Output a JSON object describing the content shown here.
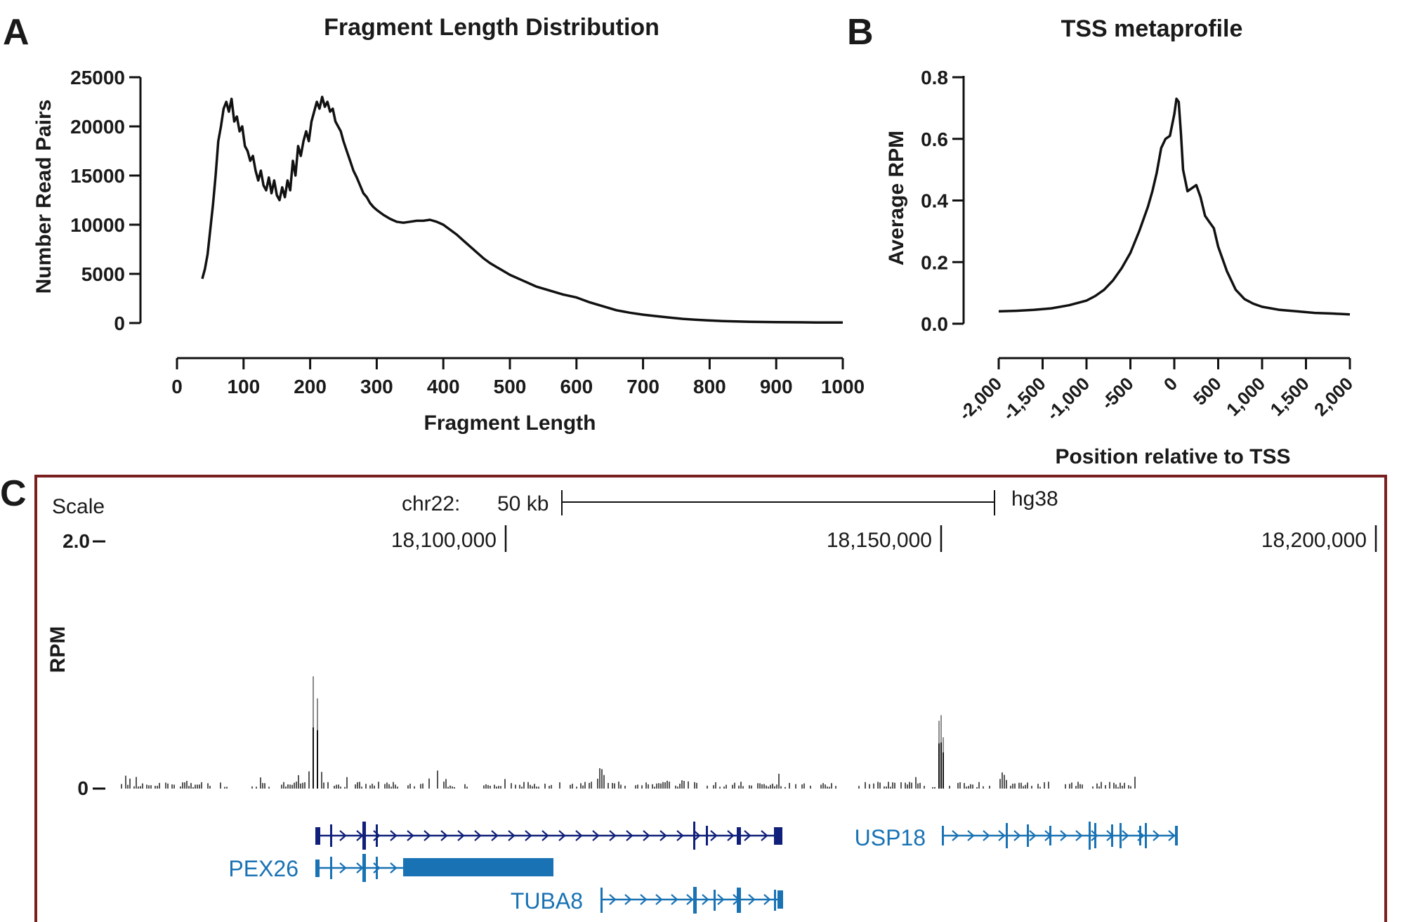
{
  "panel_labels": {
    "a": "A",
    "b": "B",
    "c": "C"
  },
  "colors": {
    "ink": "#111111",
    "frame": "#7a1f1f",
    "gene_dark": "#0f1f7a",
    "gene_blue": "#1872b4",
    "signal_gray": "#8a8a8a"
  },
  "chart_data": [
    {
      "type": "line",
      "title": "Fragment Length Distribution",
      "xlabel": "Fragment Length",
      "ylabel": "Number Read Pairs",
      "xlim": [
        0,
        1000
      ],
      "ylim": [
        0,
        25000
      ],
      "xticks": [
        0,
        100,
        200,
        300,
        400,
        500,
        600,
        700,
        800,
        900,
        1000
      ],
      "yticks": [
        0,
        5000,
        10000,
        15000,
        20000,
        25000
      ],
      "x": [
        38,
        42,
        46,
        50,
        54,
        58,
        62,
        66,
        70,
        74,
        78,
        82,
        86,
        90,
        94,
        98,
        102,
        106,
        110,
        114,
        118,
        122,
        126,
        130,
        134,
        138,
        142,
        146,
        150,
        154,
        158,
        162,
        166,
        170,
        174,
        178,
        182,
        186,
        190,
        194,
        198,
        202,
        206,
        210,
        214,
        218,
        222,
        226,
        230,
        234,
        238,
        242,
        246,
        250,
        255,
        260,
        265,
        270,
        275,
        280,
        285,
        290,
        295,
        300,
        310,
        320,
        330,
        340,
        350,
        360,
        370,
        380,
        390,
        400,
        410,
        420,
        430,
        440,
        450,
        460,
        470,
        480,
        490,
        500,
        520,
        540,
        560,
        580,
        600,
        620,
        640,
        660,
        680,
        700,
        720,
        740,
        760,
        780,
        800,
        820,
        840,
        860,
        880,
        900,
        920,
        940,
        960,
        980,
        1000
      ],
      "series": [
        {
          "values": [
            4500,
            5500,
            7000,
            9500,
            12000,
            15000,
            18500,
            20000,
            21800,
            22500,
            21500,
            22800,
            20500,
            21000,
            19500,
            20000,
            18000,
            17500,
            16500,
            17000,
            15500,
            14500,
            15500,
            14000,
            13500,
            14800,
            13200,
            14500,
            13000,
            12500,
            13800,
            12800,
            14500,
            13500,
            16500,
            15000,
            18000,
            17000,
            18500,
            19500,
            18500,
            20500,
            21500,
            22500,
            21800,
            23000,
            22000,
            22500,
            21500,
            21800,
            20500,
            20000,
            19500,
            18500,
            17500,
            16500,
            15500,
            14800,
            14000,
            13200,
            12800,
            12200,
            11800,
            11500,
            11000,
            10600,
            10300,
            10200,
            10300,
            10400,
            10400,
            10500,
            10300,
            10000,
            9500,
            9000,
            8400,
            7800,
            7200,
            6600,
            6100,
            5700,
            5300,
            4900,
            4300,
            3700,
            3300,
            2900,
            2600,
            2100,
            1700,
            1300,
            1050,
            850,
            700,
            550,
            420,
            330,
            260,
            200,
            160,
            130,
            110,
            95,
            80,
            70,
            60,
            55,
            50
          ]
        }
      ]
    },
    {
      "type": "line",
      "title": "TSS metaprofile",
      "xlabel": "Position relative to TSS",
      "ylabel": "Average RPM",
      "xlim": [
        -2000,
        2000
      ],
      "ylim": [
        0,
        0.8
      ],
      "xticks": [
        "-2,000",
        "-1,500",
        "-1,000",
        "-500",
        "0",
        "500",
        "1,000",
        "1,500",
        "2,000"
      ],
      "yticks": [
        "0.0",
        "0.2",
        "0.4",
        "0.6",
        "0.8"
      ],
      "x": [
        -2000,
        -1800,
        -1600,
        -1400,
        -1200,
        -1000,
        -900,
        -800,
        -700,
        -600,
        -500,
        -400,
        -300,
        -250,
        -200,
        -150,
        -100,
        -50,
        0,
        25,
        50,
        75,
        100,
        150,
        200,
        250,
        300,
        350,
        400,
        450,
        500,
        600,
        700,
        800,
        900,
        1000,
        1200,
        1400,
        1600,
        1800,
        2000
      ],
      "series": [
        {
          "values": [
            0.04,
            0.042,
            0.045,
            0.05,
            0.06,
            0.075,
            0.09,
            0.11,
            0.14,
            0.18,
            0.23,
            0.3,
            0.38,
            0.43,
            0.49,
            0.57,
            0.6,
            0.61,
            0.68,
            0.73,
            0.72,
            0.62,
            0.5,
            0.43,
            0.44,
            0.45,
            0.41,
            0.35,
            0.33,
            0.31,
            0.25,
            0.17,
            0.11,
            0.08,
            0.065,
            0.055,
            0.045,
            0.04,
            0.035,
            0.033,
            0.03
          ]
        }
      ]
    }
  ],
  "browser": {
    "scale_label": "Scale",
    "chrom_label": "chr22:",
    "scale_bar_label": "50 kb",
    "assembly": "hg38",
    "positions": [
      "18,100,000",
      "18,150,000",
      "18,200,000"
    ],
    "y_max_label": "2.0",
    "y_min_label": "0",
    "y_axis_label": "RPM",
    "genes": [
      {
        "label": "USP18"
      },
      {
        "label": "PEX26"
      },
      {
        "label": "TUBA8"
      }
    ]
  }
}
